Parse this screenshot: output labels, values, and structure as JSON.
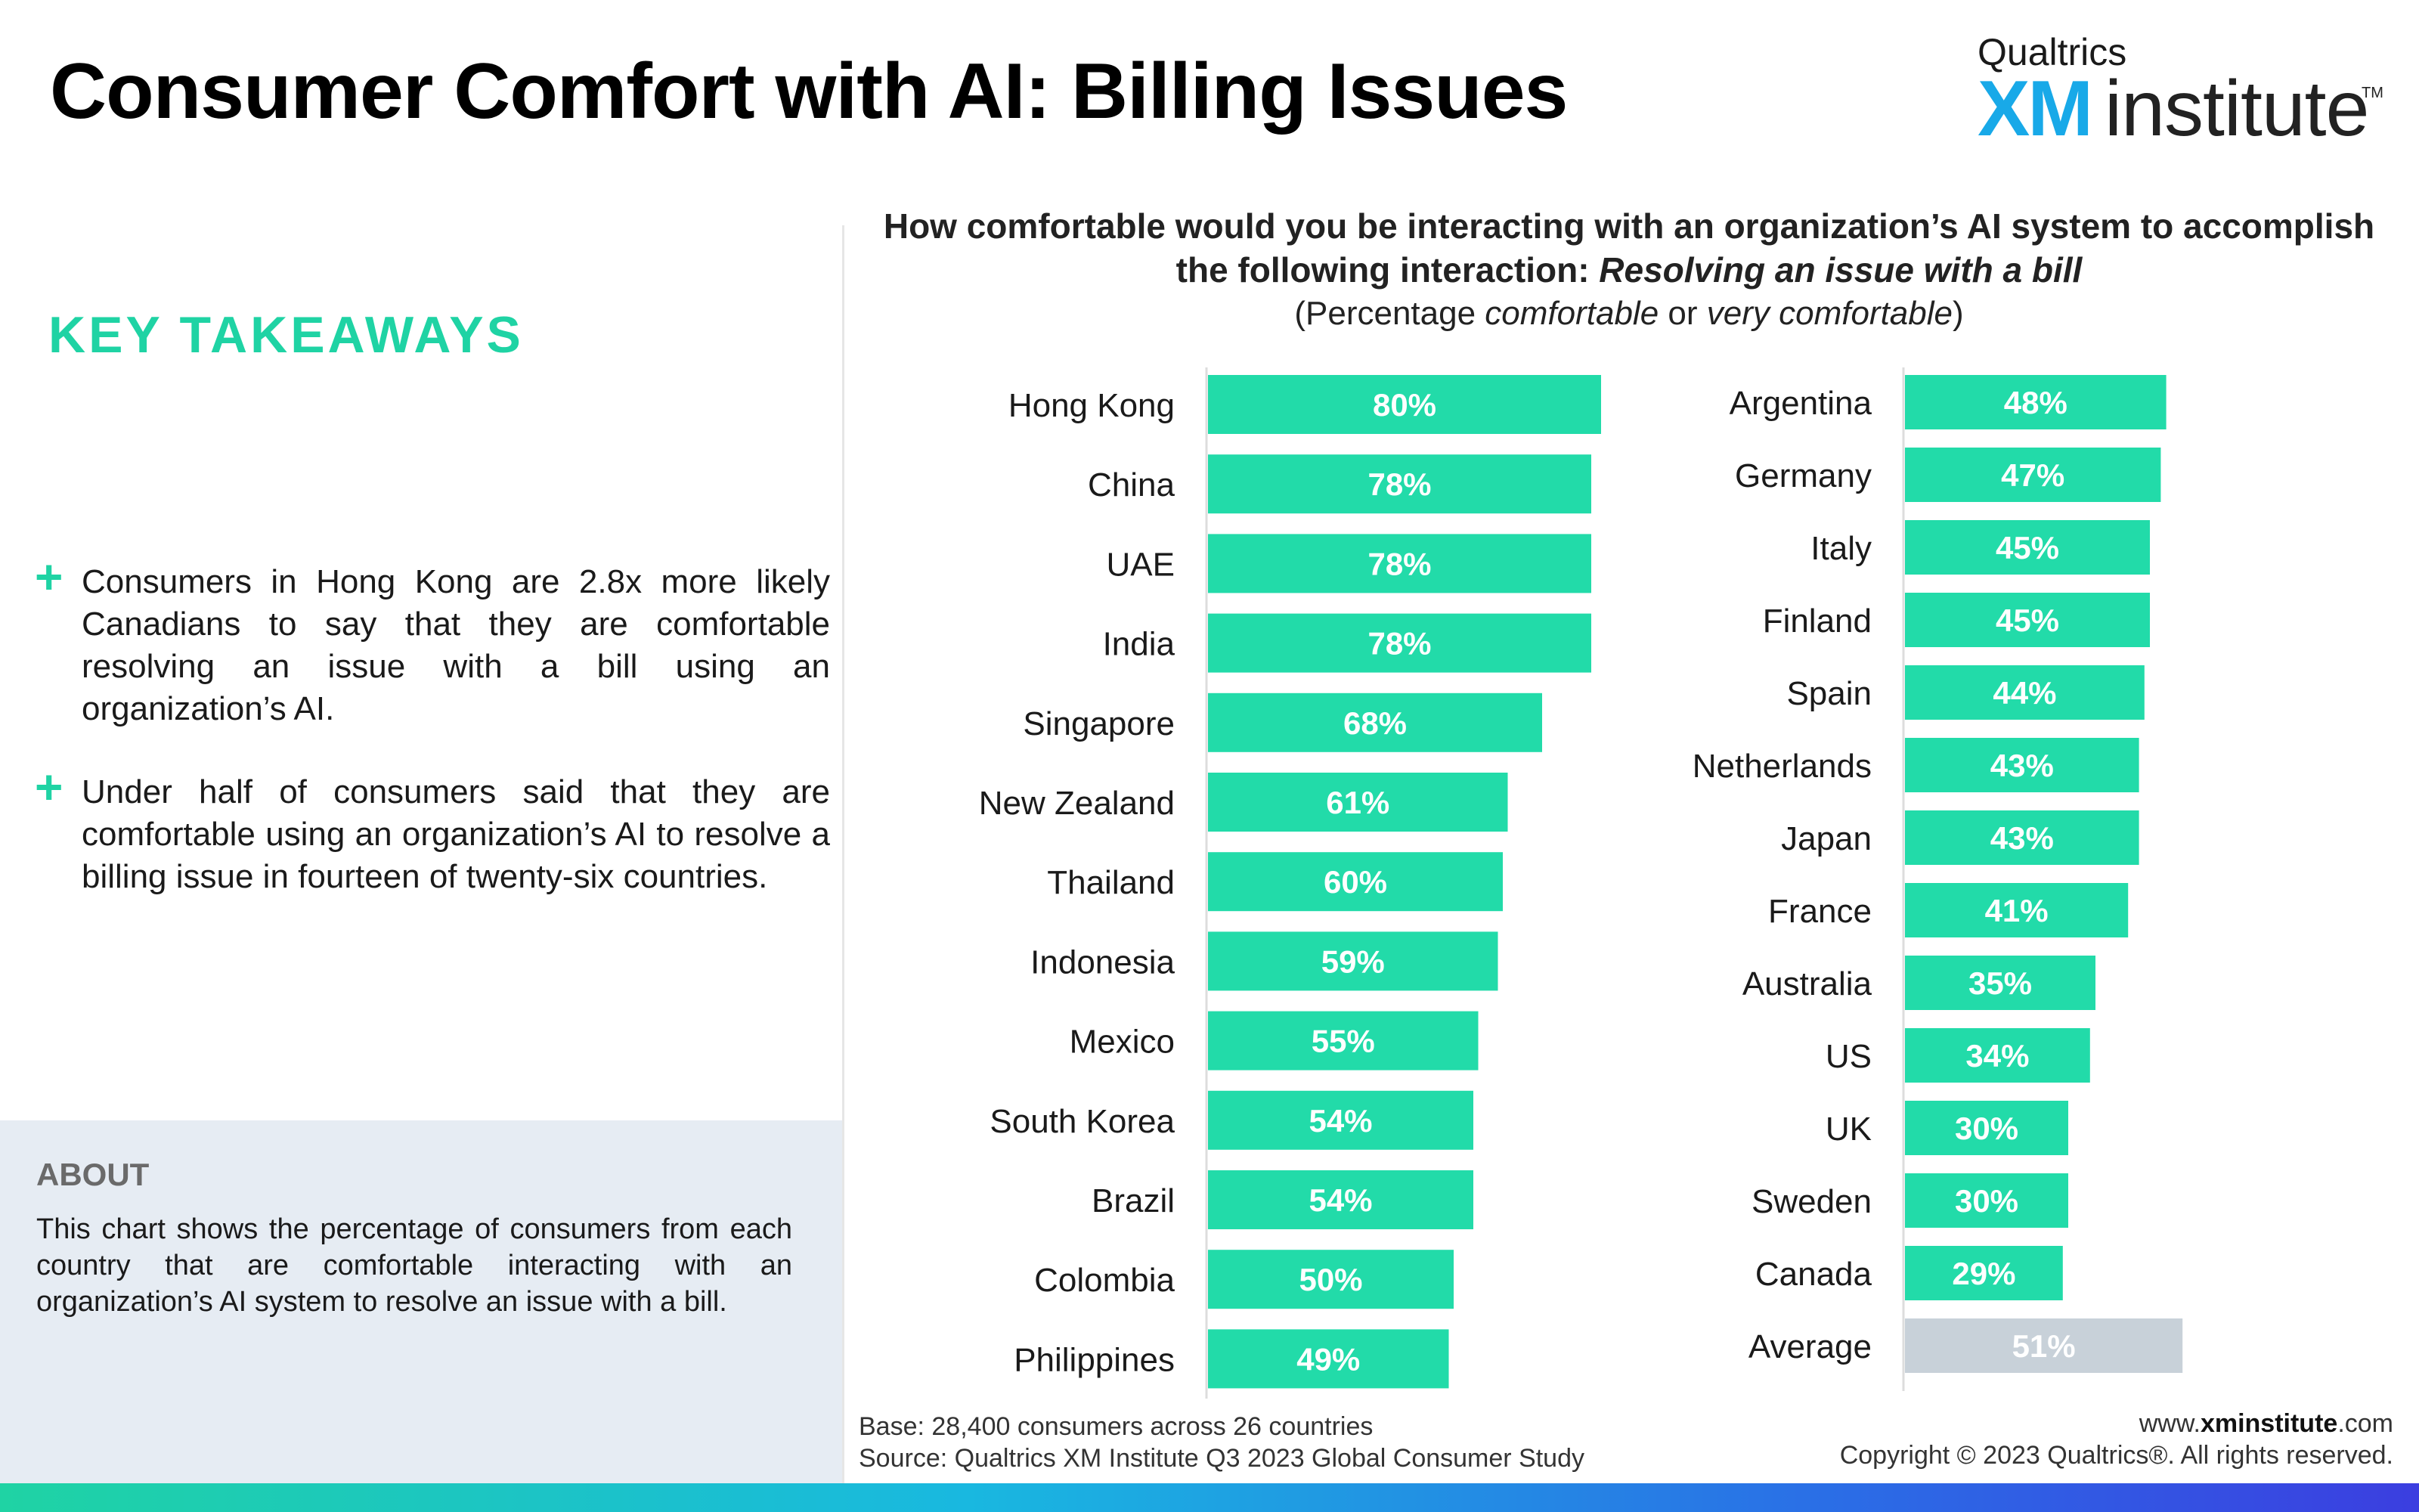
{
  "page": {
    "title": "Consumer Comfort with AI: Billing Issues"
  },
  "logo": {
    "small": "Qualtrics",
    "xm": "XM",
    "institute": "institute",
    "tm": "TM"
  },
  "takeaways": {
    "heading": "KEY TAKEAWAYS",
    "items": [
      "Consumers in Hong Kong are 2.8x more likely Canadians to say that they are comfortable resolving an issue with a bill using an organization’s AI.",
      "Under half of consumers said that they are comfortable using an organization’s AI to resolve a billing issue in fourteen of twenty-six countries."
    ]
  },
  "about": {
    "heading": "ABOUT",
    "text": "This chart shows the percentage of consumers from each country that are comfortable interacting with an organization’s AI system to resolve an issue with a bill."
  },
  "question": {
    "line1": "How comfortable would you be interacting with an organization’s AI system to accomplish",
    "line2_lead": "the following interaction: ",
    "line2_italic": "Resolving an issue with a bill",
    "sub_open": "(Percentage ",
    "sub_comfortable": "comfortable",
    "sub_or": " or ",
    "sub_very": "very comfortable",
    "sub_close": ")"
  },
  "chart_data": {
    "type": "bar",
    "orientation": "horizontal",
    "unit": "%",
    "xlim": [
      0,
      100
    ],
    "grid": false,
    "colors": {
      "bar": "#22dba9",
      "average": "#c8d1d9",
      "label": "#ffffff"
    },
    "panels": [
      {
        "categories": [
          "Hong Kong",
          "China",
          "UAE",
          "India",
          "Singapore",
          "New Zealand",
          "Thailand",
          "Indonesia",
          "Mexico",
          "South Korea",
          "Brazil",
          "Colombia",
          "Philippines"
        ],
        "values": [
          80,
          78,
          78,
          78,
          68,
          61,
          60,
          59,
          55,
          54,
          54,
          50,
          49
        ],
        "labels": [
          "80%",
          "78%",
          "78%",
          "78%",
          "68%",
          "61%",
          "60%",
          "59%",
          "55%",
          "54%",
          "54%",
          "50%",
          "49%"
        ]
      },
      {
        "categories": [
          "Argentina",
          "Germany",
          "Italy",
          "Finland",
          "Spain",
          "Netherlands",
          "Japan",
          "France",
          "Australia",
          "US",
          "UK",
          "Sweden",
          "Canada",
          "Average"
        ],
        "values": [
          48,
          47,
          45,
          45,
          44,
          43,
          43,
          41,
          35,
          34,
          30,
          30,
          29,
          51
        ],
        "labels": [
          "48%",
          "47%",
          "45%",
          "45%",
          "44%",
          "43%",
          "43%",
          "41%",
          "35%",
          "34%",
          "30%",
          "30%",
          "29%",
          "51%"
        ],
        "highlight": "Average"
      }
    ]
  },
  "footer": {
    "base": "Base: 28,400 consumers across 26 countries",
    "source": "Source: Qualtrics XM Institute Q3 2023 Global Consumer Study",
    "url_prefix": "www.",
    "url_bold": "xminstitute",
    "url_suffix": ".com",
    "copyright": "Copyright © 2023 Qualtrics®. All rights reserved."
  }
}
